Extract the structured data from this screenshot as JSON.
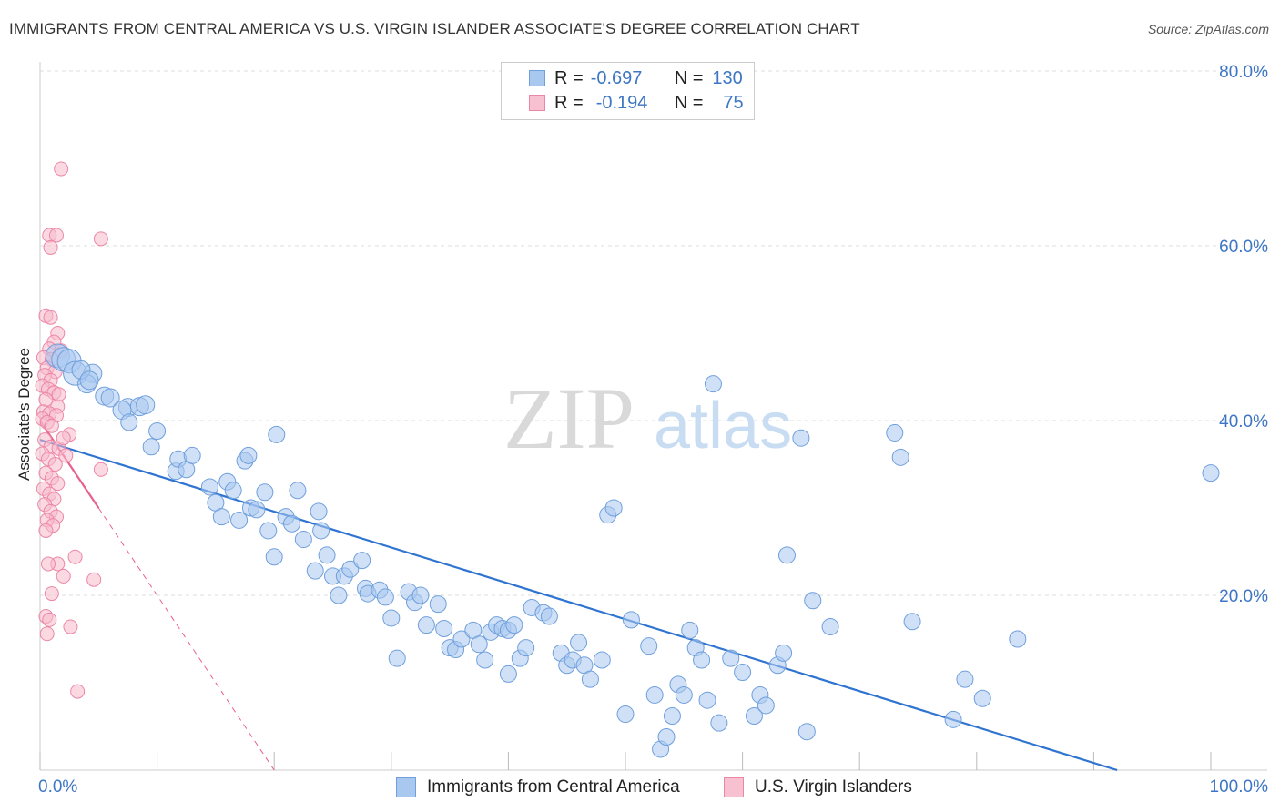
{
  "header": {
    "title": "IMMIGRANTS FROM CENTRAL AMERICA VS U.S. VIRGIN ISLANDER ASSOCIATE'S DEGREE CORRELATION CHART",
    "source": "Source: ZipAtlas.com"
  },
  "watermark": {
    "zip": "ZIP",
    "atlas": "atlas"
  },
  "legend": {
    "rows": [
      {
        "r_label": "R =",
        "r_value": "-0.697",
        "n_label": "N =",
        "n_value": "130",
        "color": "#7aaae8"
      },
      {
        "r_label": "R =",
        "r_value": "-0.194",
        "n_label": "N =",
        "n_value": "75",
        "color": "#f29bb8"
      }
    ]
  },
  "bottom_legend": {
    "series1": "Immigrants from Central America",
    "series2": "U.S. Virgin Islanders"
  },
  "colors": {
    "blue_fill": "#a9c8f0",
    "blue_stroke": "#6f9fdc",
    "blue_line": "#2f74d0",
    "pink_fill": "#f7b9cc",
    "pink_stroke": "#ec86a6",
    "pink_line": "#e8608c",
    "axis_text": "#3d76c4",
    "grid": "#dddddd"
  },
  "chart_data": {
    "type": "scatter",
    "title": "IMMIGRANTS FROM CENTRAL AMERICA VS U.S. VIRGIN ISLANDER ASSOCIATE'S DEGREE CORRELATION CHART",
    "xlabel": "",
    "ylabel": "Associate's Degree",
    "xlim": [
      0,
      100
    ],
    "ylim": [
      0,
      80
    ],
    "x_tick_labels": [
      "0.0%",
      "100.0%"
    ],
    "y_tick_labels": [
      "20.0%",
      "40.0%",
      "60.0%",
      "80.0%"
    ],
    "y_ticks": [
      20,
      40,
      60,
      80
    ],
    "grid": true,
    "legend_position": "top-center",
    "series": [
      {
        "name": "Immigrants from Central America",
        "color": "#7aaae8",
        "r": -0.697,
        "n": 130,
        "trend": {
          "x": [
            0,
            92
          ],
          "y": [
            37.8,
            0
          ]
        },
        "points": [
          [
            1.5,
            47.4
          ],
          [
            2,
            47
          ],
          [
            2.5,
            46.8
          ],
          [
            3,
            45.4
          ],
          [
            4.5,
            45.4
          ],
          [
            4,
            44.2
          ],
          [
            5.5,
            42.8
          ],
          [
            6,
            42.6
          ],
          [
            7.5,
            41.5
          ],
          [
            8.5,
            41.6
          ],
          [
            9,
            41.8
          ],
          [
            7,
            41.2
          ],
          [
            3.5,
            45.8
          ],
          [
            4.2,
            44.6
          ],
          [
            7.6,
            39.8
          ],
          [
            10,
            38.8
          ],
          [
            9.5,
            37
          ],
          [
            11.6,
            34.2
          ],
          [
            11.8,
            35.6
          ],
          [
            12.5,
            34.4
          ],
          [
            13,
            36
          ],
          [
            14.5,
            32.4
          ],
          [
            15,
            30.6
          ],
          [
            15.5,
            29
          ],
          [
            16,
            33
          ],
          [
            16.5,
            32
          ],
          [
            17,
            28.6
          ],
          [
            17.5,
            35.4
          ],
          [
            17.8,
            36
          ],
          [
            18,
            30
          ],
          [
            18.5,
            29.8
          ],
          [
            19.2,
            31.8
          ],
          [
            19.5,
            27.4
          ],
          [
            20,
            24.4
          ],
          [
            20.2,
            38.4
          ],
          [
            21,
            29
          ],
          [
            21.5,
            28.2
          ],
          [
            22,
            32
          ],
          [
            22.5,
            26.4
          ],
          [
            23.5,
            22.8
          ],
          [
            23.8,
            29.6
          ],
          [
            24,
            27.4
          ],
          [
            24.5,
            24.6
          ],
          [
            25,
            22.2
          ],
          [
            25.5,
            20
          ],
          [
            26,
            22.2
          ],
          [
            26.5,
            23
          ],
          [
            27.5,
            24
          ],
          [
            27.8,
            20.8
          ],
          [
            28,
            20.2
          ],
          [
            29,
            20.6
          ],
          [
            29.5,
            19.8
          ],
          [
            30,
            17.4
          ],
          [
            30.5,
            12.8
          ],
          [
            31.5,
            20.4
          ],
          [
            32,
            19.2
          ],
          [
            32.5,
            20
          ],
          [
            33,
            16.6
          ],
          [
            34,
            19
          ],
          [
            34.5,
            16.2
          ],
          [
            35,
            14
          ],
          [
            35.5,
            13.8
          ],
          [
            36,
            15
          ],
          [
            37,
            16
          ],
          [
            37.5,
            14.4
          ],
          [
            38,
            12.6
          ],
          [
            38.5,
            15.8
          ],
          [
            39,
            16.6
          ],
          [
            39.5,
            16.2
          ],
          [
            40,
            16
          ],
          [
            40.5,
            16.6
          ],
          [
            40,
            11
          ],
          [
            41,
            12.8
          ],
          [
            41.5,
            14
          ],
          [
            42,
            18.6
          ],
          [
            43,
            18
          ],
          [
            43.5,
            17.6
          ],
          [
            44.5,
            13.4
          ],
          [
            45,
            12
          ],
          [
            45.5,
            12.6
          ],
          [
            46,
            14.6
          ],
          [
            46.5,
            12
          ],
          [
            47,
            10.4
          ],
          [
            48,
            12.6
          ],
          [
            48.5,
            29.2
          ],
          [
            49,
            30
          ],
          [
            50,
            6.4
          ],
          [
            50.5,
            17.2
          ],
          [
            52,
            14.2
          ],
          [
            52.5,
            8.6
          ],
          [
            53,
            2.4
          ],
          [
            53.5,
            3.8
          ],
          [
            54,
            6.2
          ],
          [
            54.5,
            9.8
          ],
          [
            55,
            8.6
          ],
          [
            55.5,
            16
          ],
          [
            56,
            14
          ],
          [
            56.5,
            12.6
          ],
          [
            57,
            8
          ],
          [
            57.5,
            44.2
          ],
          [
            58,
            5.4
          ],
          [
            59,
            12.8
          ],
          [
            60,
            11.2
          ],
          [
            61,
            6.2
          ],
          [
            61.5,
            8.6
          ],
          [
            62,
            7.4
          ],
          [
            63,
            12
          ],
          [
            63.5,
            13.4
          ],
          [
            63.8,
            24.6
          ],
          [
            65,
            38
          ],
          [
            65.5,
            4.4
          ],
          [
            66,
            19.4
          ],
          [
            67.5,
            16.4
          ],
          [
            73,
            38.6
          ],
          [
            73.5,
            35.8
          ],
          [
            74.5,
            17
          ],
          [
            78,
            5.8
          ],
          [
            79,
            10.4
          ],
          [
            80.5,
            8.2
          ],
          [
            83.5,
            15
          ],
          [
            100,
            34
          ]
        ]
      },
      {
        "name": "U.S. Virgin Islanders",
        "color": "#f29bb8",
        "r": -0.194,
        "n": 75,
        "trend": {
          "x": [
            0,
            5
          ],
          "y": [
            40.0,
            30.0
          ],
          "dashed_extension": {
            "x": [
              5,
              20
            ],
            "y": [
              30.0,
              0
            ]
          }
        },
        "points": [
          [
            1.8,
            68.8
          ],
          [
            0.8,
            61.2
          ],
          [
            1.4,
            61.2
          ],
          [
            0.9,
            59.8
          ],
          [
            5.2,
            60.8
          ],
          [
            0.5,
            52
          ],
          [
            0.9,
            51.8
          ],
          [
            1.5,
            50
          ],
          [
            1.2,
            49
          ],
          [
            0.8,
            48.2
          ],
          [
            1.8,
            48
          ],
          [
            0.3,
            47.2
          ],
          [
            1,
            47
          ],
          [
            0.6,
            46
          ],
          [
            1.3,
            45.6
          ],
          [
            0.4,
            45.2
          ],
          [
            0.9,
            44.6
          ],
          [
            0.2,
            44
          ],
          [
            0.7,
            43.6
          ],
          [
            1.2,
            43.2
          ],
          [
            0.5,
            42.4
          ],
          [
            1.5,
            41.6
          ],
          [
            0.3,
            41
          ],
          [
            0.8,
            40.8
          ],
          [
            1.4,
            40.6
          ],
          [
            0.2,
            40.2
          ],
          [
            0.6,
            39.8
          ],
          [
            1,
            39.4
          ],
          [
            2.5,
            38.4
          ],
          [
            0.4,
            37.8
          ],
          [
            0.9,
            37
          ],
          [
            1.6,
            36.8
          ],
          [
            0.2,
            36.2
          ],
          [
            0.7,
            35.6
          ],
          [
            1.3,
            35
          ],
          [
            5.2,
            34.4
          ],
          [
            0.5,
            34
          ],
          [
            1,
            33.4
          ],
          [
            1.5,
            32.8
          ],
          [
            0.3,
            32.2
          ],
          [
            0.8,
            31.6
          ],
          [
            1.2,
            31
          ],
          [
            0.4,
            30.4
          ],
          [
            0.9,
            29.6
          ],
          [
            1.4,
            29
          ],
          [
            0.6,
            28.6
          ],
          [
            1.1,
            28
          ],
          [
            0.5,
            27.4
          ],
          [
            3,
            24.4
          ],
          [
            1.5,
            23.6
          ],
          [
            0.7,
            23.6
          ],
          [
            2,
            22.2
          ],
          [
            4.6,
            21.8
          ],
          [
            1,
            20.2
          ],
          [
            0.5,
            17.6
          ],
          [
            0.8,
            17.2
          ],
          [
            2.6,
            16.4
          ],
          [
            0.6,
            15.6
          ],
          [
            3.2,
            9
          ],
          [
            2,
            38
          ],
          [
            1.6,
            43
          ],
          [
            2.2,
            36
          ]
        ]
      }
    ]
  }
}
